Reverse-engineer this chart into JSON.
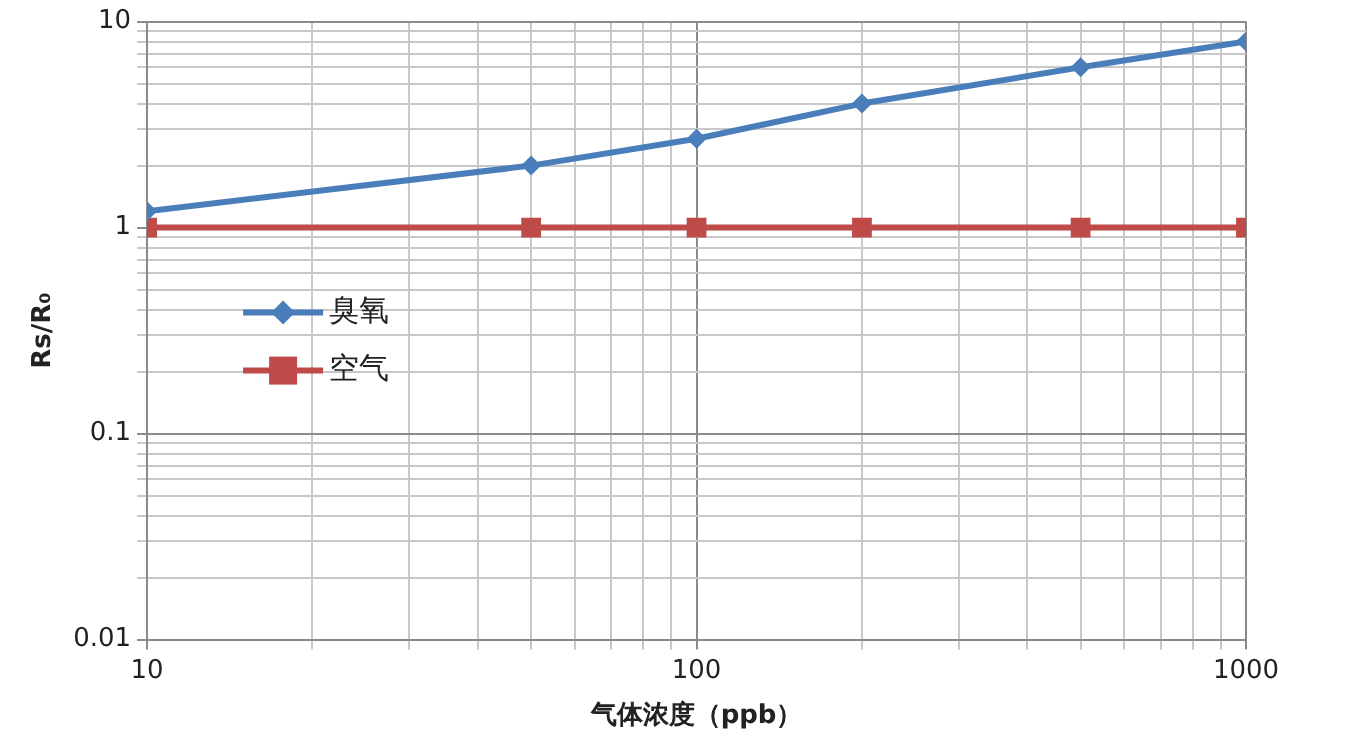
{
  "chart_data": {
    "type": "line",
    "xlabel": "气体浓度（ppb）",
    "ylabel": "Rs/R₀",
    "log": "xy",
    "x": [
      10,
      50,
      100,
      200,
      500,
      1000
    ],
    "series": [
      {
        "name": "臭氧",
        "color": "#4a7ebb",
        "values": [
          1.2,
          2.0,
          2.7,
          4.0,
          6.0,
          8.0
        ],
        "marker": "diamond"
      },
      {
        "name": "空气",
        "color": "#be4b48",
        "values": [
          1,
          1,
          1,
          1,
          1,
          1
        ],
        "marker": "square"
      }
    ],
    "xlim": [
      10,
      1000
    ],
    "xticks": [
      10,
      100,
      1000
    ],
    "ylim": [
      0.01,
      10
    ],
    "yticks": [
      0.01,
      0.1,
      1,
      10
    ],
    "grid": true,
    "legend": "center left",
    "line_style": "solid"
  }
}
